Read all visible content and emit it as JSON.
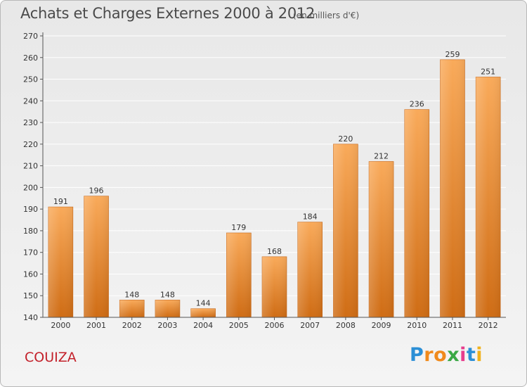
{
  "title": "Achats et Charges Externes 2000 à 2012",
  "subtitle": "(en milliers d'€)",
  "city": "COUIZA",
  "logo": {
    "p": "P",
    "r": "r",
    "o": "o",
    "x": "x",
    "i1": "i",
    "t": "t",
    "i2": "i"
  },
  "colors": {
    "bar_light": "#f8a655",
    "bar_dark": "#d06d15",
    "axis": "#555555",
    "grid": "#ffffff",
    "city": "#c3202a"
  },
  "chart_data": {
    "type": "bar",
    "categories": [
      "2000",
      "2001",
      "2002",
      "2003",
      "2004",
      "2005",
      "2006",
      "2007",
      "2008",
      "2009",
      "2010",
      "2011",
      "2012"
    ],
    "values": [
      191,
      196,
      148,
      148,
      144,
      179,
      168,
      184,
      220,
      212,
      236,
      259,
      251
    ],
    "title": "Achats et Charges Externes 2000 à 2012",
    "xlabel": "",
    "ylabel": "",
    "ylim": [
      140,
      270
    ],
    "yticks": [
      140,
      150,
      160,
      170,
      180,
      190,
      200,
      210,
      220,
      230,
      240,
      250,
      260,
      270
    ],
    "grid": true,
    "data_labels": true
  }
}
